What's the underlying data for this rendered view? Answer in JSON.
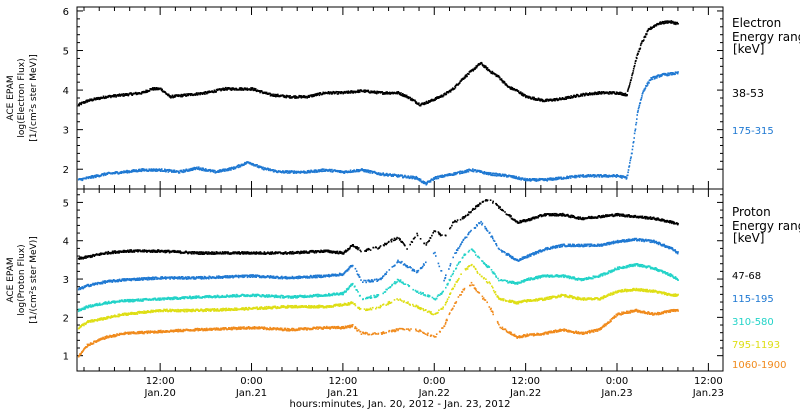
{
  "figure": {
    "xlabel": "hours:minutes, Jan. 20, 2012 - Jan. 23, 2012",
    "time_ticks": [
      {
        "t": 0.5,
        "label1": "12:00",
        "label2": "Jan.20"
      },
      {
        "t": 1.0,
        "label1": "0:00",
        "label2": "Jan.21"
      },
      {
        "t": 1.5,
        "label1": "12:00",
        "label2": "Jan.21"
      },
      {
        "t": 2.0,
        "label1": "0:00",
        "label2": "Jan.22"
      },
      {
        "t": 2.5,
        "label1": "12:00",
        "label2": "Jan.22"
      },
      {
        "t": 3.0,
        "label1": "0:00",
        "label2": "Jan.23"
      },
      {
        "t": 3.5,
        "label1": "12:00",
        "label2": "Jan.23"
      }
    ],
    "xlim_days": [
      0.045,
      3.58
    ],
    "colors": {
      "axes": "#000000",
      "background": "#ffffff"
    }
  },
  "chart_data": [
    {
      "type": "scatter",
      "ylabel_lines": [
        "ACE EPAM",
        "log(Electron Flux)",
        "[1/(cm²s ster MeV)]"
      ],
      "ylim": [
        1.5,
        6.1
      ],
      "yticks": [
        2,
        3,
        4,
        5,
        6
      ],
      "legend_title_lines": [
        "Electron",
        "Energy ranges"
      ],
      "legend_unit": "[keV]",
      "series": [
        {
          "name": "38-53",
          "color": "#000000",
          "points": [
            [
              0.05,
              3.65
            ],
            [
              0.1,
              3.75
            ],
            [
              0.2,
              3.85
            ],
            [
              0.3,
              3.9
            ],
            [
              0.4,
              3.95
            ],
            [
              0.45,
              4.05
            ],
            [
              0.5,
              4.05
            ],
            [
              0.55,
              3.85
            ],
            [
              0.65,
              3.9
            ],
            [
              0.75,
              3.95
            ],
            [
              0.85,
              4.05
            ],
            [
              1.0,
              4.05
            ],
            [
              1.1,
              3.9
            ],
            [
              1.2,
              3.85
            ],
            [
              1.3,
              3.85
            ],
            [
              1.4,
              3.95
            ],
            [
              1.5,
              3.95
            ],
            [
              1.6,
              4.0
            ],
            [
              1.7,
              3.95
            ],
            [
              1.8,
              3.95
            ],
            [
              1.85,
              3.85
            ],
            [
              1.92,
              3.65
            ],
            [
              1.98,
              3.75
            ],
            [
              2.05,
              3.9
            ],
            [
              2.1,
              4.05
            ],
            [
              2.15,
              4.3
            ],
            [
              2.2,
              4.5
            ],
            [
              2.25,
              4.7
            ],
            [
              2.3,
              4.5
            ],
            [
              2.35,
              4.35
            ],
            [
              2.4,
              4.1
            ],
            [
              2.45,
              4.0
            ],
            [
              2.5,
              3.85
            ],
            [
              2.6,
              3.75
            ],
            [
              2.7,
              3.8
            ],
            [
              2.8,
              3.9
            ],
            [
              2.9,
              3.95
            ],
            [
              3.0,
              3.95
            ],
            [
              3.05,
              3.9
            ],
            [
              3.07,
              4.25
            ],
            [
              3.1,
              4.8
            ],
            [
              3.13,
              5.2
            ],
            [
              3.17,
              5.55
            ],
            [
              3.22,
              5.7
            ],
            [
              3.28,
              5.75
            ],
            [
              3.33,
              5.7
            ]
          ]
        },
        {
          "name": "175-315",
          "color": "#1e78d2",
          "points": [
            [
              0.05,
              1.75
            ],
            [
              0.1,
              1.8
            ],
            [
              0.2,
              1.9
            ],
            [
              0.3,
              1.95
            ],
            [
              0.4,
              2.0
            ],
            [
              0.5,
              2.0
            ],
            [
              0.6,
              1.95
            ],
            [
              0.7,
              2.05
            ],
            [
              0.8,
              1.95
            ],
            [
              0.9,
              2.05
            ],
            [
              0.98,
              2.2
            ],
            [
              1.05,
              2.05
            ],
            [
              1.15,
              1.95
            ],
            [
              1.3,
              1.95
            ],
            [
              1.4,
              2.0
            ],
            [
              1.5,
              1.95
            ],
            [
              1.6,
              2.0
            ],
            [
              1.7,
              1.9
            ],
            [
              1.8,
              1.85
            ],
            [
              1.9,
              1.8
            ],
            [
              1.95,
              1.65
            ],
            [
              2.0,
              1.8
            ],
            [
              2.05,
              1.85
            ],
            [
              2.1,
              1.9
            ],
            [
              2.2,
              2.0
            ],
            [
              2.3,
              1.9
            ],
            [
              2.4,
              1.85
            ],
            [
              2.5,
              1.75
            ],
            [
              2.6,
              1.75
            ],
            [
              2.7,
              1.8
            ],
            [
              2.8,
              1.85
            ],
            [
              2.9,
              1.85
            ],
            [
              3.0,
              1.85
            ],
            [
              3.05,
              1.8
            ],
            [
              3.08,
              2.5
            ],
            [
              3.11,
              3.5
            ],
            [
              3.14,
              4.0
            ],
            [
              3.18,
              4.3
            ],
            [
              3.24,
              4.4
            ],
            [
              3.33,
              4.45
            ]
          ]
        }
      ]
    },
    {
      "type": "scatter",
      "ylabel_lines": [
        "ACE EPAM",
        "log(Proton Flux)",
        "[1/(cm²s ster MeV)]"
      ],
      "ylim": [
        0.6,
        5.35
      ],
      "yticks": [
        1,
        2,
        3,
        4,
        5
      ],
      "legend_title_lines": [
        "Proton",
        "Energy ranges"
      ],
      "legend_unit": "[keV]",
      "series": [
        {
          "name": "47-68",
          "color": "#000000",
          "points": [
            [
              0.05,
              3.55
            ],
            [
              0.1,
              3.6
            ],
            [
              0.2,
              3.7
            ],
            [
              0.3,
              3.75
            ],
            [
              0.5,
              3.75
            ],
            [
              0.7,
              3.7
            ],
            [
              1.0,
              3.7
            ],
            [
              1.2,
              3.7
            ],
            [
              1.4,
              3.75
            ],
            [
              1.5,
              3.7
            ],
            [
              1.55,
              3.9
            ],
            [
              1.6,
              3.75
            ],
            [
              1.7,
              3.85
            ],
            [
              1.75,
              4.0
            ],
            [
              1.8,
              4.1
            ],
            [
              1.85,
              3.8
            ],
            [
              1.9,
              4.2
            ],
            [
              1.95,
              3.9
            ],
            [
              2.0,
              4.3
            ],
            [
              2.05,
              4.1
            ],
            [
              2.1,
              4.5
            ],
            [
              2.15,
              4.6
            ],
            [
              2.2,
              4.8
            ],
            [
              2.25,
              5.0
            ],
            [
              2.3,
              5.1
            ],
            [
              2.35,
              4.9
            ],
            [
              2.4,
              4.7
            ],
            [
              2.45,
              4.5
            ],
            [
              2.5,
              4.55
            ],
            [
              2.6,
              4.7
            ],
            [
              2.7,
              4.7
            ],
            [
              2.8,
              4.6
            ],
            [
              2.9,
              4.65
            ],
            [
              3.0,
              4.7
            ],
            [
              3.1,
              4.65
            ],
            [
              3.2,
              4.6
            ],
            [
              3.3,
              4.5
            ],
            [
              3.33,
              4.45
            ]
          ]
        },
        {
          "name": "115-195",
          "color": "#1e78d2",
          "points": [
            [
              0.05,
              2.75
            ],
            [
              0.1,
              2.85
            ],
            [
              0.2,
              2.95
            ],
            [
              0.3,
              3.0
            ],
            [
              0.5,
              3.05
            ],
            [
              0.7,
              3.05
            ],
            [
              1.0,
              3.1
            ],
            [
              1.2,
              3.05
            ],
            [
              1.4,
              3.1
            ],
            [
              1.5,
              3.15
            ],
            [
              1.55,
              3.4
            ],
            [
              1.6,
              2.95
            ],
            [
              1.7,
              3.0
            ],
            [
              1.8,
              3.5
            ],
            [
              1.9,
              3.2
            ],
            [
              2.0,
              3.7
            ],
            [
              2.05,
              3.0
            ],
            [
              2.1,
              3.6
            ],
            [
              2.15,
              4.0
            ],
            [
              2.2,
              4.3
            ],
            [
              2.25,
              4.5
            ],
            [
              2.3,
              4.2
            ],
            [
              2.35,
              3.8
            ],
            [
              2.45,
              3.5
            ],
            [
              2.5,
              3.6
            ],
            [
              2.6,
              3.8
            ],
            [
              2.7,
              3.9
            ],
            [
              2.8,
              3.9
            ],
            [
              2.9,
              3.9
            ],
            [
              3.0,
              4.0
            ],
            [
              3.1,
              4.05
            ],
            [
              3.2,
              4.0
            ],
            [
              3.3,
              3.8
            ],
            [
              3.33,
              3.7
            ]
          ]
        },
        {
          "name": "310-580",
          "color": "#22d3c8",
          "points": [
            [
              0.05,
              2.2
            ],
            [
              0.1,
              2.3
            ],
            [
              0.2,
              2.4
            ],
            [
              0.3,
              2.45
            ],
            [
              0.5,
              2.5
            ],
            [
              0.7,
              2.55
            ],
            [
              1.0,
              2.6
            ],
            [
              1.2,
              2.55
            ],
            [
              1.4,
              2.6
            ],
            [
              1.5,
              2.65
            ],
            [
              1.55,
              2.9
            ],
            [
              1.6,
              2.5
            ],
            [
              1.7,
              2.6
            ],
            [
              1.8,
              3.0
            ],
            [
              1.9,
              2.7
            ],
            [
              2.0,
              2.5
            ],
            [
              2.05,
              2.7
            ],
            [
              2.1,
              3.2
            ],
            [
              2.15,
              3.6
            ],
            [
              2.2,
              3.8
            ],
            [
              2.25,
              3.5
            ],
            [
              2.3,
              3.3
            ],
            [
              2.35,
              3.0
            ],
            [
              2.45,
              2.9
            ],
            [
              2.5,
              3.0
            ],
            [
              2.6,
              3.1
            ],
            [
              2.7,
              3.1
            ],
            [
              2.8,
              3.0
            ],
            [
              2.9,
              3.1
            ],
            [
              3.0,
              3.3
            ],
            [
              3.1,
              3.4
            ],
            [
              3.2,
              3.3
            ],
            [
              3.3,
              3.1
            ],
            [
              3.33,
              3.0
            ]
          ]
        },
        {
          "name": "795-1193",
          "color": "#dede14",
          "points": [
            [
              0.05,
              1.75
            ],
            [
              0.1,
              1.9
            ],
            [
              0.2,
              2.0
            ],
            [
              0.3,
              2.1
            ],
            [
              0.5,
              2.2
            ],
            [
              0.7,
              2.2
            ],
            [
              1.0,
              2.25
            ],
            [
              1.2,
              2.3
            ],
            [
              1.4,
              2.3
            ],
            [
              1.5,
              2.35
            ],
            [
              1.55,
              2.4
            ],
            [
              1.6,
              2.2
            ],
            [
              1.7,
              2.3
            ],
            [
              1.8,
              2.5
            ],
            [
              1.9,
              2.3
            ],
            [
              2.0,
              2.1
            ],
            [
              2.05,
              2.3
            ],
            [
              2.1,
              2.8
            ],
            [
              2.15,
              3.2
            ],
            [
              2.2,
              3.4
            ],
            [
              2.25,
              3.1
            ],
            [
              2.3,
              2.9
            ],
            [
              2.35,
              2.5
            ],
            [
              2.45,
              2.4
            ],
            [
              2.5,
              2.45
            ],
            [
              2.6,
              2.5
            ],
            [
              2.7,
              2.6
            ],
            [
              2.8,
              2.5
            ],
            [
              2.9,
              2.5
            ],
            [
              3.0,
              2.7
            ],
            [
              3.1,
              2.75
            ],
            [
              3.2,
              2.7
            ],
            [
              3.3,
              2.6
            ],
            [
              3.33,
              2.6
            ]
          ]
        },
        {
          "name": "1060-1900",
          "color": "#f08a1c",
          "points": [
            [
              0.05,
              1.0
            ],
            [
              0.1,
              1.3
            ],
            [
              0.2,
              1.5
            ],
            [
              0.3,
              1.6
            ],
            [
              0.5,
              1.65
            ],
            [
              0.7,
              1.7
            ],
            [
              1.0,
              1.75
            ],
            [
              1.2,
              1.7
            ],
            [
              1.4,
              1.75
            ],
            [
              1.5,
              1.75
            ],
            [
              1.55,
              1.8
            ],
            [
              1.6,
              1.6
            ],
            [
              1.7,
              1.6
            ],
            [
              1.8,
              1.7
            ],
            [
              1.9,
              1.7
            ],
            [
              2.0,
              1.5
            ],
            [
              2.05,
              1.8
            ],
            [
              2.1,
              2.3
            ],
            [
              2.15,
              2.7
            ],
            [
              2.2,
              2.9
            ],
            [
              2.25,
              2.6
            ],
            [
              2.3,
              2.3
            ],
            [
              2.35,
              1.8
            ],
            [
              2.45,
              1.5
            ],
            [
              2.5,
              1.55
            ],
            [
              2.6,
              1.6
            ],
            [
              2.7,
              1.7
            ],
            [
              2.8,
              1.6
            ],
            [
              2.9,
              1.7
            ],
            [
              3.0,
              2.1
            ],
            [
              3.1,
              2.2
            ],
            [
              3.2,
              2.1
            ],
            [
              3.3,
              2.2
            ],
            [
              3.33,
              2.2
            ]
          ]
        }
      ]
    }
  ]
}
